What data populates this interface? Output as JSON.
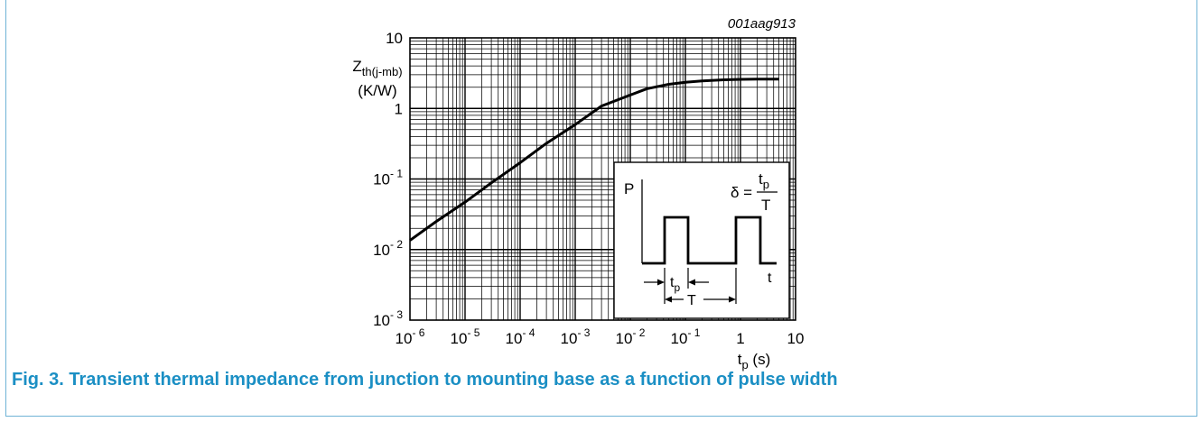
{
  "chart_data": {
    "type": "line",
    "title": "",
    "code": "001aag913",
    "x_scale": "log",
    "y_scale": "log",
    "xlim": [
      1e-06,
      10
    ],
    "ylim": [
      0.001,
      10
    ],
    "grid": true,
    "xlabel": {
      "main": "t",
      "sub": "p",
      "unit": " (s)"
    },
    "ylabel": {
      "main": "Z",
      "sub": "th(j-mb)",
      "unit": "(K/W)"
    },
    "x_ticks": [
      {
        "base": "10",
        "exp": "- 6"
      },
      {
        "base": "10",
        "exp": "- 5"
      },
      {
        "base": "10",
        "exp": "- 4"
      },
      {
        "base": "10",
        "exp": "- 3"
      },
      {
        "base": "10",
        "exp": "- 2"
      },
      {
        "base": "10",
        "exp": "- 1"
      },
      {
        "base": "1",
        "exp": ""
      },
      {
        "base": "10",
        "exp": ""
      }
    ],
    "y_ticks": [
      {
        "base": "10",
        "exp": "- 3"
      },
      {
        "base": "10",
        "exp": "- 2"
      },
      {
        "base": "10",
        "exp": "- 1"
      },
      {
        "base": "1",
        "exp": ""
      },
      {
        "base": "10",
        "exp": ""
      }
    ],
    "series": [
      {
        "x": [
          1e-06,
          3e-06,
          1e-05,
          3e-05,
          0.0001,
          0.0003,
          0.001,
          0.003,
          0.01,
          0.02,
          0.05,
          0.1,
          0.2,
          0.5,
          1,
          2,
          5
        ],
        "y": [
          0.0135,
          0.025,
          0.047,
          0.088,
          0.17,
          0.32,
          0.59,
          1.08,
          1.55,
          1.9,
          2.2,
          2.35,
          2.45,
          2.55,
          2.58,
          2.6,
          2.6
        ]
      }
    ],
    "inset": {
      "p_label": "P",
      "t_label": "t",
      "tp_main": "t",
      "tp_sub": "p",
      "T_label": "T",
      "delta_label": "δ =",
      "frac_num_main": "t",
      "frac_num_sub": "p",
      "frac_den": "T"
    }
  },
  "caption": "Fig. 3. Transient thermal impedance from junction to mounting base as a function of pulse width"
}
